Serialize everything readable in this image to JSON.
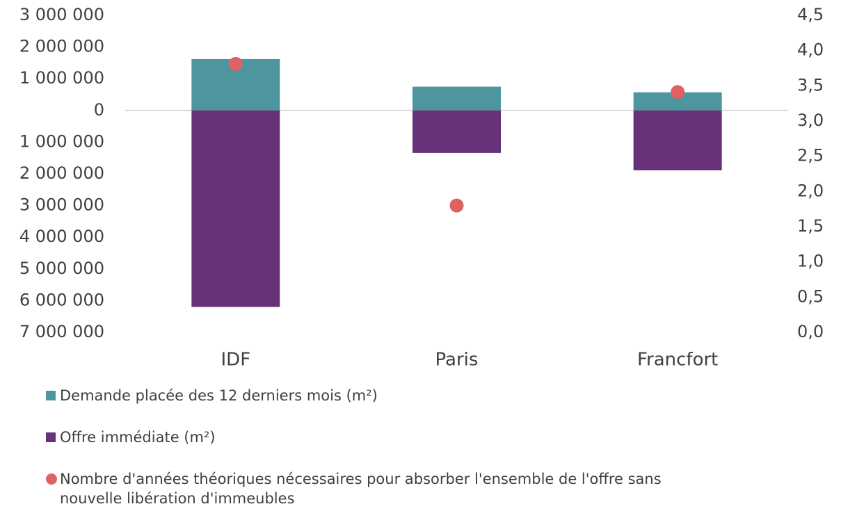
{
  "chart_data": {
    "type": "bar",
    "categories": [
      "IDF",
      "Paris",
      "Francfort"
    ],
    "series": [
      {
        "name": "Demande placée des 12 derniers mois (m²)",
        "color": "#4e969f",
        "values": [
          1620000,
          750000,
          570000
        ]
      },
      {
        "name": "Offre immédiate (m²)",
        "color": "#673278",
        "values": [
          -6200000,
          -1340000,
          -1890000
        ]
      },
      {
        "name": "Nombre d'années théoriques nécessaires pour absorber l'ensemble de l'offre sans nouvelle libération d'immeubles",
        "color": "#df6262",
        "type": "scatter",
        "axis": "y2",
        "values": [
          3.81,
          1.8,
          3.41
        ]
      }
    ],
    "ylim": [
      -7000000,
      3000000
    ],
    "yticks": [
      {
        "value": 3000000,
        "label": "3 000 000"
      },
      {
        "value": 2000000,
        "label": "2 000 000"
      },
      {
        "value": 1000000,
        "label": "1 000 000"
      },
      0,
      {
        "value": -1000000,
        "label": "1 000 000"
      },
      {
        "value": -2000000,
        "label": "2 000 000"
      },
      {
        "value": -3000000,
        "label": "3 000 000"
      },
      {
        "value": -4000000,
        "label": "4 000 000"
      },
      {
        "value": -5000000,
        "label": "5 000 000"
      },
      {
        "value": -6000000,
        "label": "6 000 000"
      },
      {
        "value": -7000000,
        "label": "7 000 000"
      }
    ],
    "y2lim": [
      0,
      4.5
    ],
    "y2ticks": [
      {
        "value": 4.5,
        "label": "4,5"
      },
      {
        "value": 4,
        "label": "4,0"
      },
      {
        "value": 3.5,
        "label": "3,5"
      },
      {
        "value": 3,
        "label": "3,0"
      },
      {
        "value": 2.5,
        "label": "2,5"
      },
      {
        "value": 2,
        "label": "2,0"
      },
      {
        "value": 1.5,
        "label": "1,5"
      },
      {
        "value": 1,
        "label": "1,0"
      },
      {
        "value": 0.5,
        "label": "0,5"
      },
      {
        "value": 0,
        "label": "0,0"
      }
    ],
    "grid": false,
    "legend": "bottom"
  }
}
